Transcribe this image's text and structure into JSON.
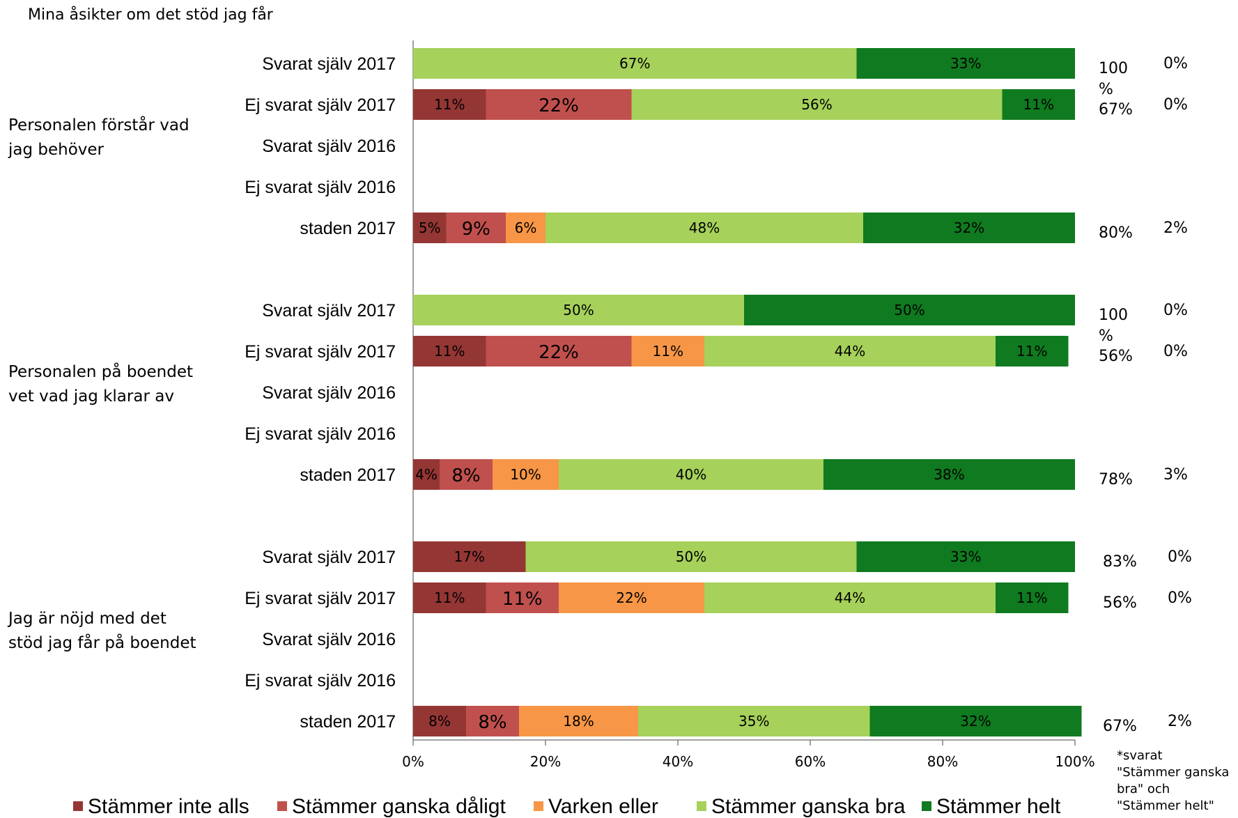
{
  "chart_data": {
    "type": "bar",
    "orientation": "horizontal-stacked",
    "title": "Mina åsikter om det stöd jag får",
    "x_ticks": [
      "0%",
      "20%",
      "40%",
      "60%",
      "80%",
      "100%"
    ],
    "xlim": [
      0,
      100
    ],
    "legend_position": "bottom",
    "series": [
      {
        "name": "Stämmer inte alls",
        "color": "#943634"
      },
      {
        "name": "Stämmer ganska dåligt",
        "color": "#C0504D"
      },
      {
        "name": "Varken eller",
        "color": "#F79646"
      },
      {
        "name": "Stämmer ganska bra",
        "color": "#A6D15A"
      },
      {
        "name": "Stämmer helt",
        "color": "#0F7A1F"
      }
    ],
    "groups": [
      {
        "label_lines": [
          "Personalen förstår vad",
          "jag behöver"
        ],
        "rows": [
          {
            "label": "Svarat själv 2017",
            "values": [
              0,
              0,
              0,
              67,
              33
            ],
            "value_labels": [
              "",
              "",
              "",
              "67%",
              "33%"
            ],
            "positive": "100 %",
            "negative": "0%"
          },
          {
            "label": "Ej svarat själv 2017",
            "values": [
              11,
              22,
              0,
              56,
              11
            ],
            "value_labels": [
              "11%",
              "22%",
              "",
              "56%",
              "11%"
            ],
            "positive": "67%",
            "negative": "0%"
          },
          {
            "label": "Svarat själv 2016",
            "values": [],
            "value_labels": [],
            "positive": "",
            "negative": ""
          },
          {
            "label": "Ej svarat själv 2016",
            "values": [],
            "value_labels": [],
            "positive": "",
            "negative": ""
          },
          {
            "label": "staden 2017",
            "values": [
              5,
              9,
              6,
              48,
              32
            ],
            "value_labels": [
              "5%",
              "9%",
              "6%",
              "48%",
              "32%"
            ],
            "positive": "80%",
            "negative": "2%"
          }
        ]
      },
      {
        "label_lines": [
          "Personalen på boendet",
          "vet vad jag klarar av"
        ],
        "rows": [
          {
            "label": "Svarat själv 2017",
            "values": [
              0,
              0,
              0,
              50,
              50
            ],
            "value_labels": [
              "",
              "",
              "",
              "50%",
              "50%"
            ],
            "positive": "100 %",
            "negative": "0%"
          },
          {
            "label": "Ej svarat själv 2017",
            "values": [
              11,
              22,
              11,
              44,
              11
            ],
            "value_labels": [
              "11%",
              "22%",
              "11%",
              "44%",
              "11%"
            ],
            "positive": "56%",
            "negative": "0%"
          },
          {
            "label": "Svarat själv 2016",
            "values": [],
            "value_labels": [],
            "positive": "",
            "negative": ""
          },
          {
            "label": "Ej svarat själv 2016",
            "values": [],
            "value_labels": [],
            "positive": "",
            "negative": ""
          },
          {
            "label": "staden 2017",
            "values": [
              4,
              8,
              10,
              40,
              38
            ],
            "value_labels": [
              "4%",
              "8%",
              "10%",
              "40%",
              "38%"
            ],
            "positive": "78%",
            "negative": "3%"
          }
        ]
      },
      {
        "label_lines": [
          "Jag är nöjd med det",
          "stöd jag får på boendet"
        ],
        "rows": [
          {
            "label": "Svarat själv 2017",
            "values": [
              17,
              0,
              0,
              50,
              33
            ],
            "value_labels": [
              "17%",
              "",
              "",
              "50%",
              "33%"
            ],
            "positive": "83%",
            "negative": "0%"
          },
          {
            "label": "Ej svarat själv 2017",
            "values": [
              11,
              11,
              22,
              44,
              11
            ],
            "value_labels": [
              "11%",
              "11%",
              "22%",
              "44%",
              "11%"
            ],
            "positive": "56%",
            "negative": "0%"
          },
          {
            "label": "Svarat själv 2016",
            "values": [],
            "value_labels": [],
            "positive": "",
            "negative": ""
          },
          {
            "label": "Ej svarat själv 2016",
            "values": [],
            "value_labels": [],
            "positive": "",
            "negative": ""
          },
          {
            "label": "staden 2017",
            "values": [
              8,
              8,
              18,
              35,
              32
            ],
            "value_labels": [
              "8%",
              "8%",
              "18%",
              "35%",
              "32%"
            ],
            "positive": "67%",
            "negative": "2%"
          }
        ]
      }
    ],
    "footnote_lines": [
      "*svarat",
      "\"Stämmer ganska",
      "bra\" och",
      "\"Stämmer helt\""
    ]
  }
}
